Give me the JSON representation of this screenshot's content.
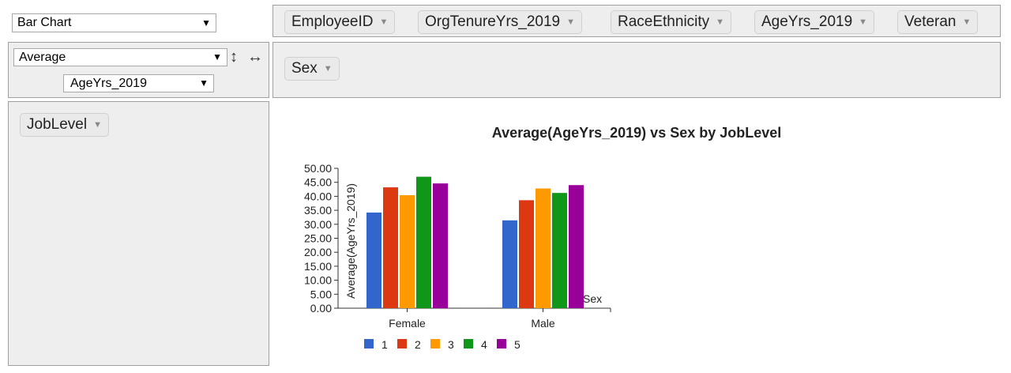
{
  "renderer_select": {
    "value": "Bar Chart"
  },
  "aggregator_select": {
    "value": "Average"
  },
  "attribute_select": {
    "value": "AgeYrs_2019"
  },
  "controls": {
    "row_sort_icon": "vertical-arrows-icon",
    "col_sort_icon": "horizontal-arrows-icon"
  },
  "unused_attributes": [
    "EmployeeID",
    "OrgTenureYrs_2019",
    "RaceEthnicity",
    "AgeYrs_2019",
    "Veteran"
  ],
  "col_attributes": [
    "Sex"
  ],
  "row_attributes": [
    "JobLevel"
  ],
  "colors": {
    "1": "#3366cc",
    "2": "#dc3912",
    "3": "#ff9900",
    "4": "#109618",
    "5": "#990099"
  },
  "chart_data": {
    "type": "bar",
    "title": "Average(AgeYrs_2019) vs Sex by JobLevel",
    "xlabel": "Sex",
    "ylabel": "Average(AgeYrs_2019)",
    "categories": [
      "Female",
      "Male"
    ],
    "ylim": [
      0,
      50
    ],
    "yticks": [
      "0.00",
      "5.00",
      "10.00",
      "15.00",
      "20.00",
      "25.00",
      "30.00",
      "35.00",
      "40.00",
      "45.00",
      "50.00"
    ],
    "legend_position": "bottom",
    "series": [
      {
        "name": "1",
        "values": [
          34.2,
          31.4
        ]
      },
      {
        "name": "2",
        "values": [
          43.2,
          38.6
        ]
      },
      {
        "name": "3",
        "values": [
          40.4,
          42.8
        ]
      },
      {
        "name": "4",
        "values": [
          47.0,
          41.2
        ]
      },
      {
        "name": "5",
        "values": [
          44.6,
          44.0
        ]
      }
    ]
  }
}
